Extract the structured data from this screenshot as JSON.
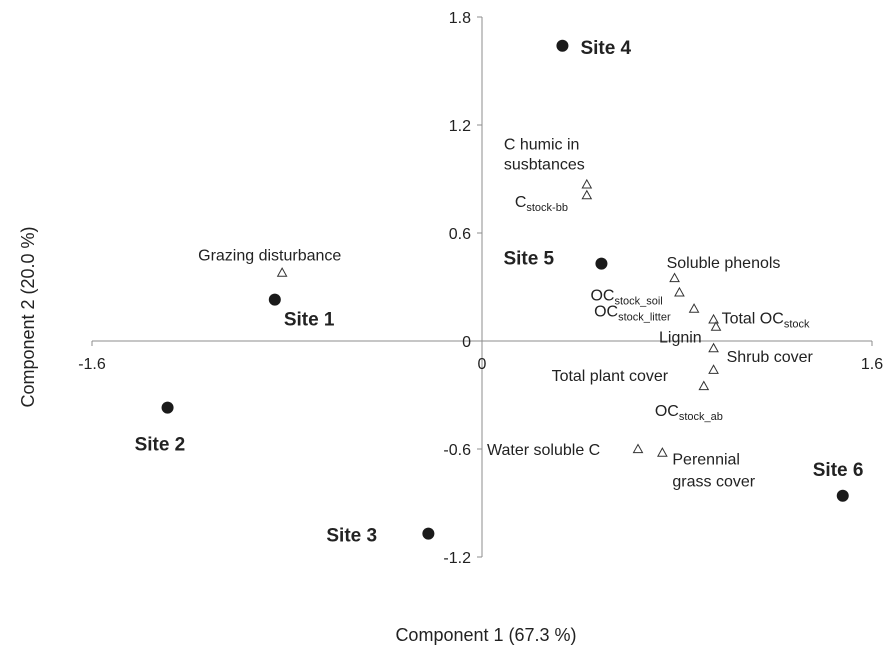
{
  "chart_data": {
    "type": "scatter",
    "xlabel": "Component 1 (67.3 %)",
    "ylabel": "Component 2 (20.0 %)",
    "xlim": [
      -1.6,
      1.6
    ],
    "ylim": [
      -1.2,
      1.8
    ],
    "x_ticks": [
      "-1.6",
      "0",
      "1.6"
    ],
    "y_ticks": [
      "1.8",
      "1.2",
      "0.6",
      "0",
      "-0.6",
      "-1.2"
    ],
    "grid": false,
    "sites": [
      {
        "label": "Site 1",
        "x": -0.85,
        "y": 0.23
      },
      {
        "label": "Site 2",
        "x": -1.29,
        "y": -0.37
      },
      {
        "label": "Site 3",
        "x": -0.22,
        "y": -1.07
      },
      {
        "label": "Site 4",
        "x": 0.33,
        "y": 1.64
      },
      {
        "label": "Site 5",
        "x": 0.49,
        "y": 0.43
      },
      {
        "label": "Site 6",
        "x": 1.48,
        "y": -0.86
      }
    ],
    "variables": [
      {
        "label": "Grazing disturbance",
        "x": -0.82,
        "y": 0.38
      },
      {
        "label": "C humic in susbtances",
        "label_lines": [
          "C humic in",
          "susbtances"
        ],
        "x": 0.43,
        "y": 0.87
      },
      {
        "label": "Cstock-bb",
        "base": "C",
        "sub": "stock-bb",
        "x": 0.43,
        "y": 0.81
      },
      {
        "label": "Soluble phenols",
        "x": 0.79,
        "y": 0.35
      },
      {
        "label": "OCstock_soil",
        "base": "OC",
        "sub": "stock_soil",
        "x": 0.81,
        "y": 0.27
      },
      {
        "label": "OCstock_litter",
        "base": "OC",
        "sub": "stock_litter",
        "x": 0.87,
        "y": 0.18
      },
      {
        "label": "Total OCstock",
        "base": "Total OC",
        "sub": "stock",
        "x": 0.95,
        "y": 0.12
      },
      {
        "label": "Lignin",
        "x": 0.96,
        "y": 0.08
      },
      {
        "label": "Shrub cover",
        "x": 0.95,
        "y": -0.04
      },
      {
        "label": "Total plant cover",
        "x": 0.95,
        "y": -0.16
      },
      {
        "label": "OCstock_ab",
        "base": "OC",
        "sub": "stock_ab",
        "x": 0.91,
        "y": -0.25
      },
      {
        "label": "Water soluble C",
        "x": 0.64,
        "y": -0.6
      },
      {
        "label": "Perennial grass cover",
        "label_lines": [
          "Perennial",
          "grass cover"
        ],
        "x": 0.74,
        "y": -0.62
      }
    ]
  }
}
